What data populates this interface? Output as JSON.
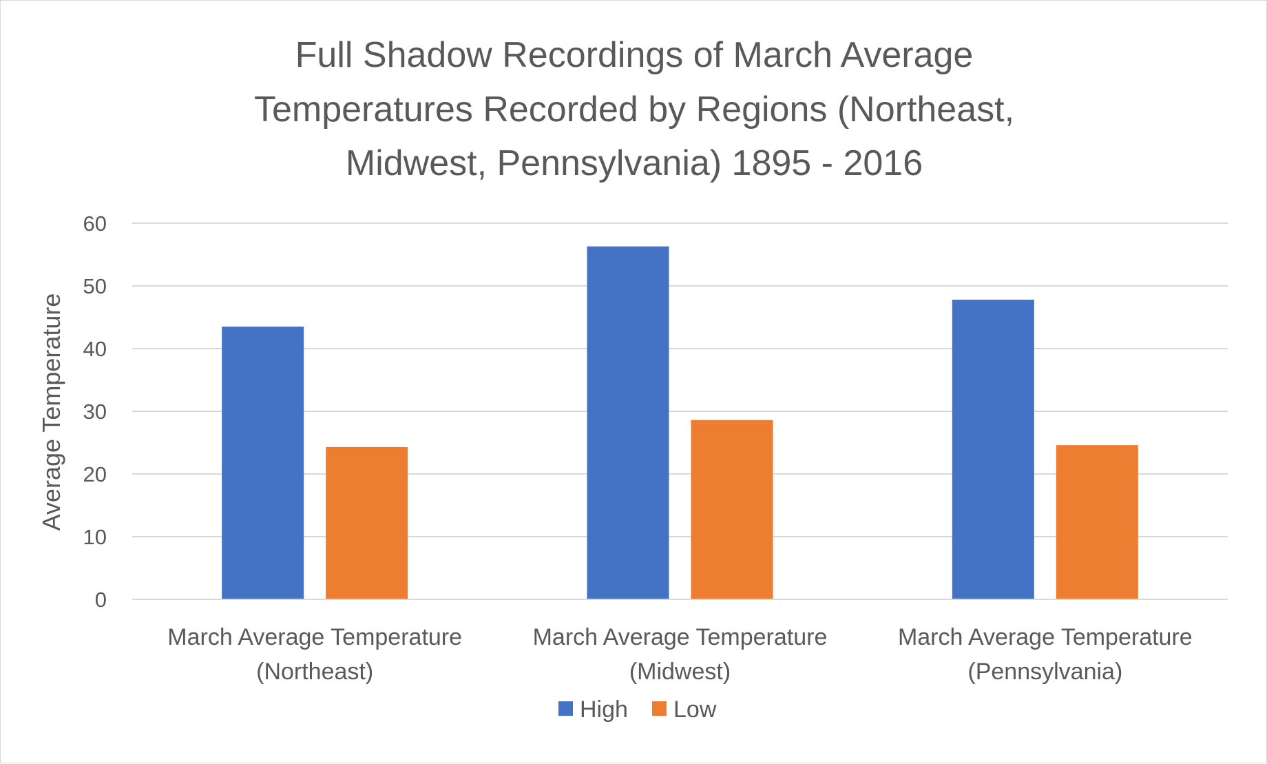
{
  "chart_data": {
    "type": "bar",
    "title_lines": [
      "Full Shadow Recordings of March Average",
      "Temperatures Recorded by Regions (Northeast,",
      "Midwest, Pennsylvania) 1895 - 2016"
    ],
    "ylabel": "Average Temperature",
    "xlabel": "",
    "ylim": [
      0,
      60
    ],
    "yticks": [
      "0",
      "10",
      "20",
      "30",
      "40",
      "50",
      "60"
    ],
    "categories": [
      [
        "March Average Temperature",
        "(Northeast)"
      ],
      [
        "March Average Temperature",
        "(Midwest)"
      ],
      [
        "March Average Temperature",
        "(Pennsylvania)"
      ]
    ],
    "series": [
      {
        "name": "High",
        "color": "#4472C4",
        "values": [
          43.5,
          56.3,
          47.8
        ]
      },
      {
        "name": "Low",
        "color": "#ED7D31",
        "values": [
          24.3,
          28.6,
          24.6
        ]
      }
    ],
    "grid": true,
    "legend_position": "bottom"
  }
}
